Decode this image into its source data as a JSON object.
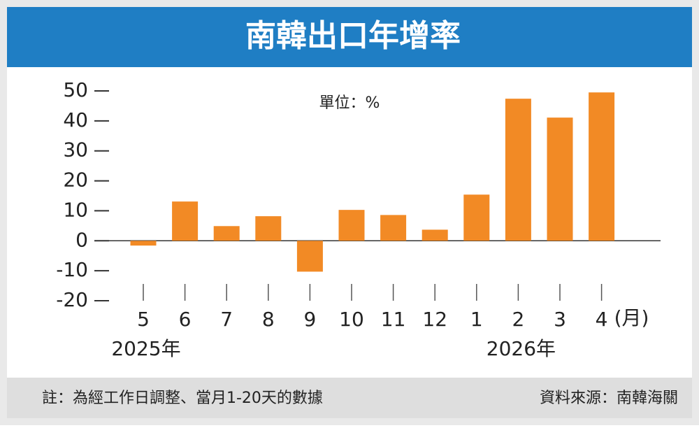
{
  "chart_data": {
    "type": "bar",
    "title": "南韓出口年增率",
    "unit": "單位：%",
    "categories": [
      "5",
      "6",
      "7",
      "8",
      "9",
      "10",
      "11",
      "12",
      "1",
      "2",
      "3",
      "4"
    ],
    "values": [
      -1.6,
      13.1,
      4.9,
      8.2,
      -10.3,
      10.3,
      8.6,
      3.7,
      15.4,
      47.4,
      41.1,
      49.5
    ],
    "color": "#f28a25",
    "ylim": [
      -20,
      50
    ],
    "yticks": [
      -20,
      -10,
      0,
      10,
      20,
      30,
      40,
      50
    ],
    "x_unit": "(月)",
    "year_labels": [
      "2025年",
      "2026年"
    ],
    "note": "註：為經工作日調整、當月1-20天的數據",
    "source": "資料來源：南韓海關"
  }
}
